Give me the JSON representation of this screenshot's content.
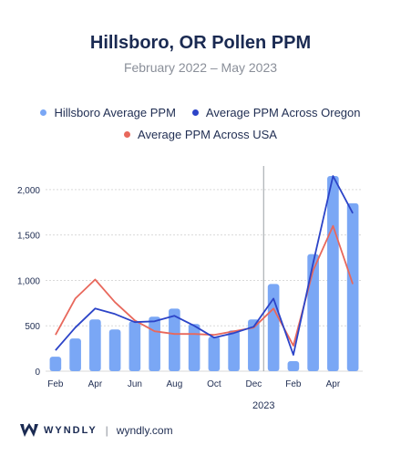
{
  "title": "Hillsboro, OR Pollen PPM",
  "subtitle": "February 2022 – May 2023",
  "legend": {
    "bars": "Hillsboro Average PPM",
    "oregon": "Average PPM Across Oregon",
    "usa": "Average PPM Across USA"
  },
  "colors": {
    "bars": "#7aa7f5",
    "oregon": "#2c44c8",
    "usa": "#e8685c",
    "divider": "#9aa0a6",
    "grid": "#d9d9d9"
  },
  "footer": {
    "brand": "WYNDLY",
    "separator": "|",
    "site": "wyndly.com"
  },
  "chart_data": {
    "type": "bar",
    "title": "Hillsboro, OR Pollen PPM",
    "subtitle": "February 2022 – May 2023",
    "categories": [
      "Feb 2022",
      "Mar 2022",
      "Apr 2022",
      "May 2022",
      "Jun 2022",
      "Jul 2022",
      "Aug 2022",
      "Sep 2022",
      "Oct 2022",
      "Nov 2022",
      "Dec 2022",
      "Jan 2023",
      "Feb 2023",
      "Mar 2023",
      "Apr 2023",
      "May 2023"
    ],
    "x_tick_labels": [
      "Feb",
      "",
      "Apr",
      "",
      "Jun",
      "",
      "Aug",
      "",
      "Oct",
      "",
      "Dec",
      "",
      "Feb",
      "",
      "Apr",
      ""
    ],
    "year_marker": {
      "label": "2023",
      "between": [
        "Dec 2022",
        "Jan 2023"
      ]
    },
    "ylim": [
      0,
      2200
    ],
    "y_ticks": [
      0,
      500,
      1000,
      1500,
      2000
    ],
    "y_tick_labels": [
      "0",
      "500",
      "1,000",
      "1,500",
      "2,000"
    ],
    "grid": true,
    "legend_position": "top",
    "series": [
      {
        "name": "Hillsboro Average PPM",
        "kind": "bar",
        "values": [
          160,
          360,
          570,
          460,
          550,
          600,
          690,
          520,
          380,
          450,
          570,
          960,
          110,
          1290,
          2150,
          1850
        ]
      },
      {
        "name": "Average PPM Across Oregon",
        "kind": "line",
        "values": [
          230,
          480,
          690,
          630,
          540,
          550,
          610,
          500,
          370,
          420,
          490,
          800,
          180,
          1190,
          2150,
          1740
        ]
      },
      {
        "name": "Average PPM Across USA",
        "kind": "line",
        "values": [
          400,
          800,
          1010,
          760,
          560,
          440,
          410,
          410,
          400,
          440,
          480,
          690,
          280,
          1110,
          1600,
          960
        ]
      }
    ]
  }
}
